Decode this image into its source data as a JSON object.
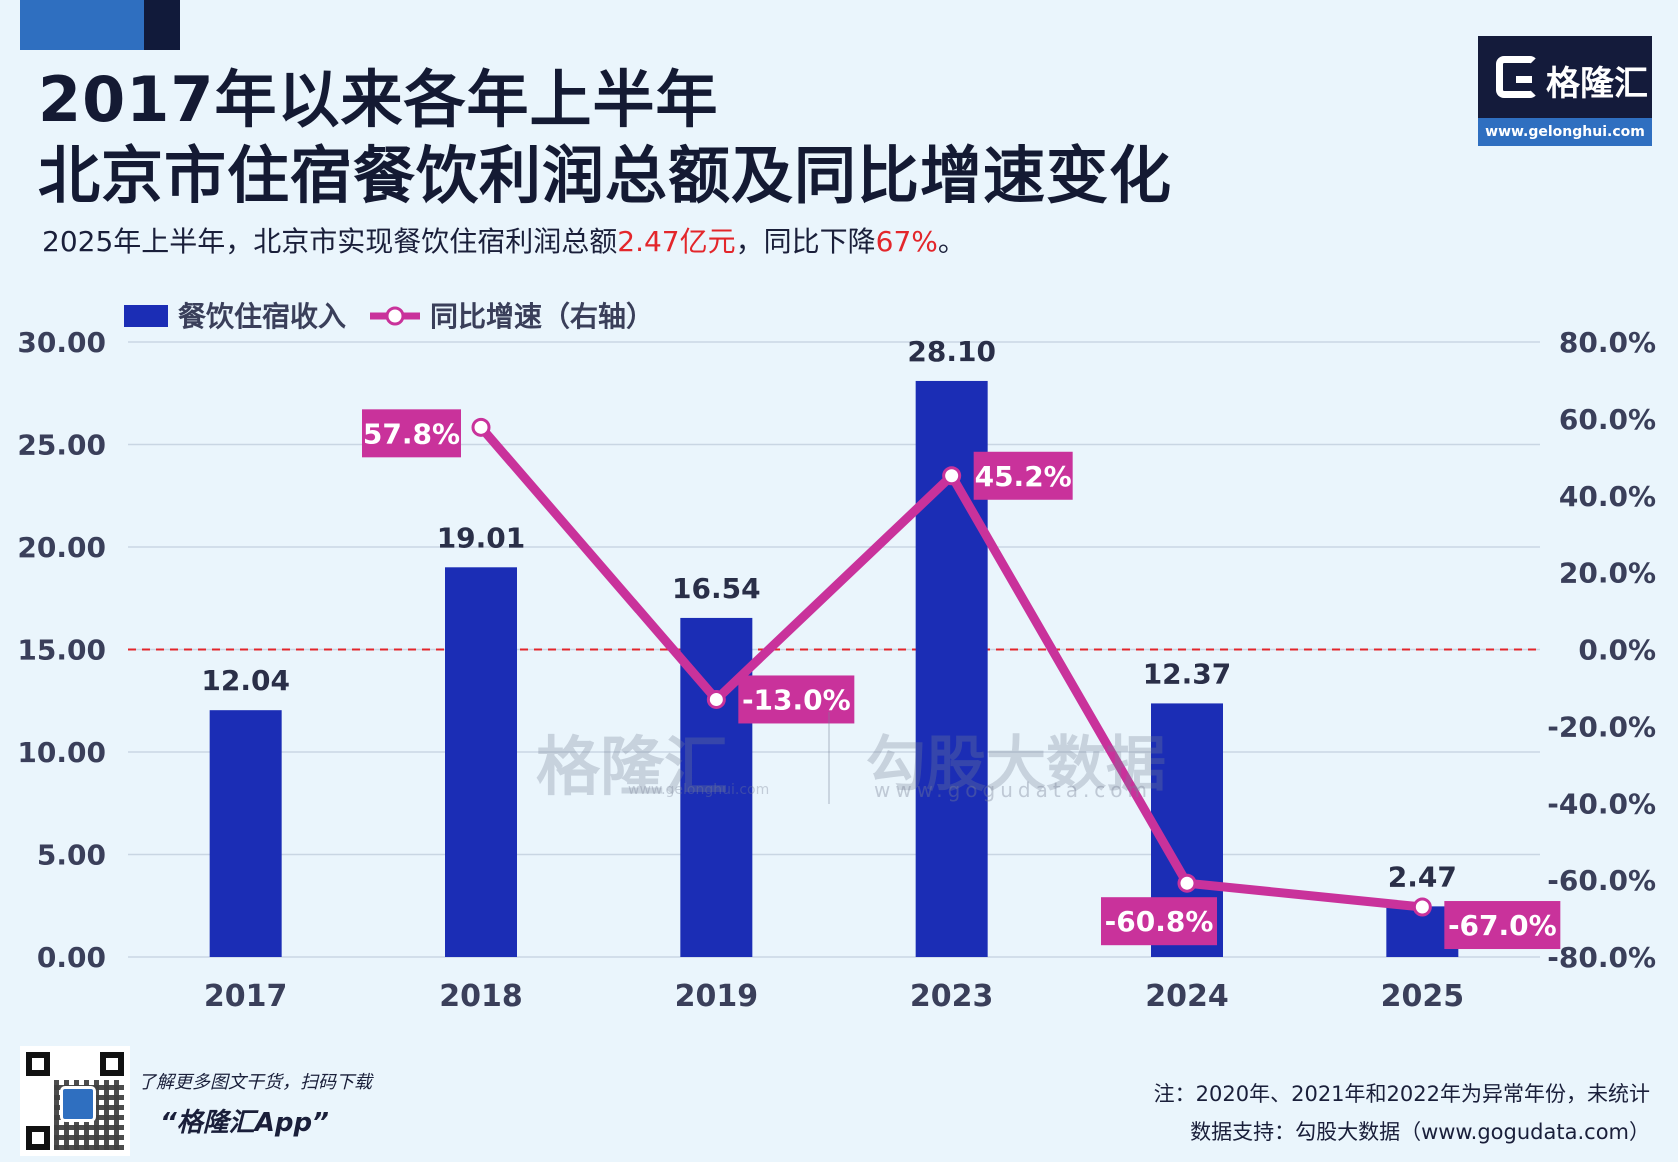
{
  "header": {
    "title_line1": "2017年以来各年上半年",
    "title_line2": "北京市住宿餐饮利润总额及同比增速变化",
    "subtitle_pre": "2025年上半年，北京市实现餐饮住宿利润总额",
    "subtitle_value1": "2.47亿元",
    "subtitle_mid": "，同比下降",
    "subtitle_value2": "67%",
    "subtitle_post": "。"
  },
  "logo": {
    "name": "格隆汇",
    "url": "www.gelonghui.com"
  },
  "watermarks": {
    "brand": "格隆汇",
    "brand_url": "www.gelonghui.com",
    "data": "勾股大数据",
    "data_url": "www.gogudata.com"
  },
  "footer": {
    "promo_line1": "了解更多图文干货，扫码下载",
    "promo_line2": "“格隆汇App”",
    "note": "注：2020年、2021年和2022年为异常年份，未统计",
    "source": "数据支持：勾股大数据（www.gogudata.com）"
  },
  "colors": {
    "bar": "#1b2db5",
    "line": "#c9329b",
    "zero_line": "#e3262b"
  },
  "chart_data": {
    "type": "bar",
    "categories": [
      "2017",
      "2018",
      "2019",
      "2023",
      "2024",
      "2025"
    ],
    "series": [
      {
        "name": "餐饮住宿收入",
        "type": "bar",
        "axis": "left",
        "values": [
          12.04,
          19.01,
          16.54,
          28.1,
          12.37,
          2.47
        ],
        "labels": [
          "12.04",
          "19.01",
          "16.54",
          "28.10",
          "12.37",
          "2.47"
        ]
      },
      {
        "name": "同比增速（右轴）",
        "type": "line",
        "axis": "right",
        "values": [
          null,
          57.8,
          -13.0,
          45.2,
          -60.8,
          -67.0
        ],
        "labels": [
          "",
          "57.8%",
          "-13.0%",
          "45.2%",
          "-60.8%",
          "-67.0%"
        ]
      }
    ],
    "y_left": {
      "min": 0,
      "max": 30,
      "ticks": [
        "0.00",
        "5.00",
        "10.00",
        "15.00",
        "20.00",
        "25.00",
        "30.00"
      ]
    },
    "y_right": {
      "min": -80,
      "max": 80,
      "ticks": [
        "-80.0%",
        "-60.0%",
        "-40.0%",
        "-20.0%",
        "0.0%",
        "20.0%",
        "40.0%",
        "60.0%",
        "80.0%"
      ]
    },
    "grid": true,
    "legend": "top-left"
  }
}
